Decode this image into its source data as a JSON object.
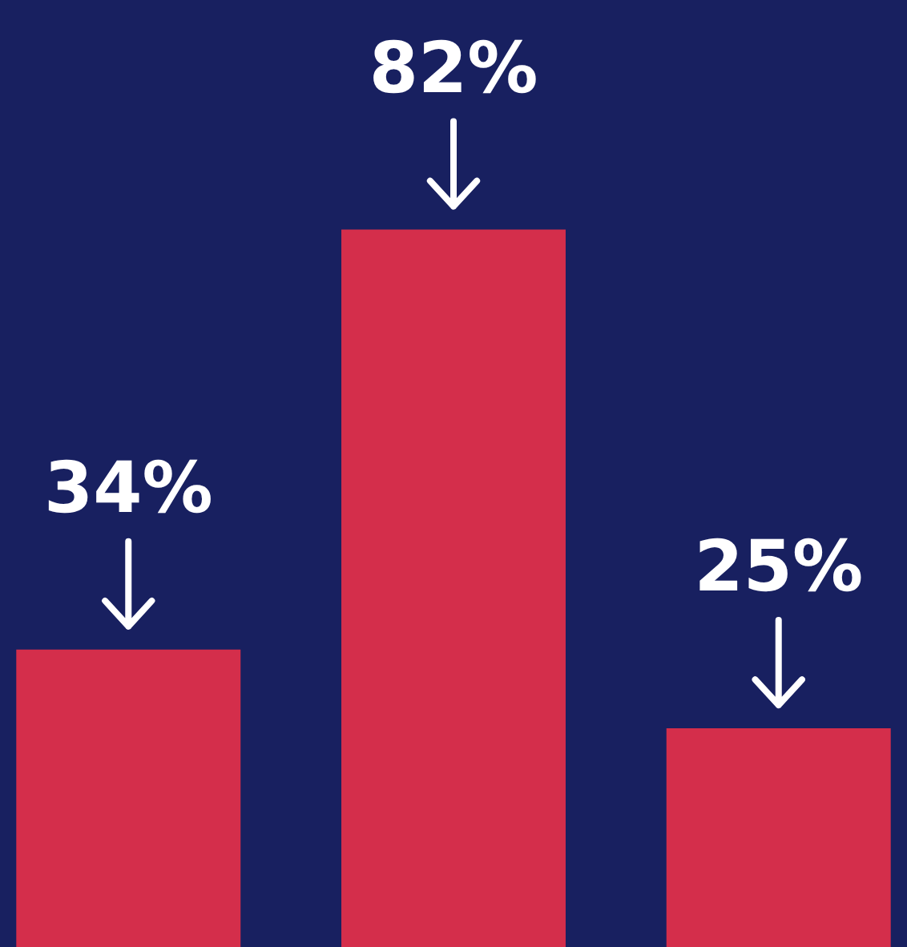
{
  "chart_data": {
    "type": "bar",
    "categories": [
      null,
      null,
      null
    ],
    "series": [
      {
        "color": "#d42e4b",
        "values": [
          34,
          82,
          25
        ],
        "value_labels": [
          "34%",
          "82%",
          "25%"
        ]
      }
    ]
  }
}
